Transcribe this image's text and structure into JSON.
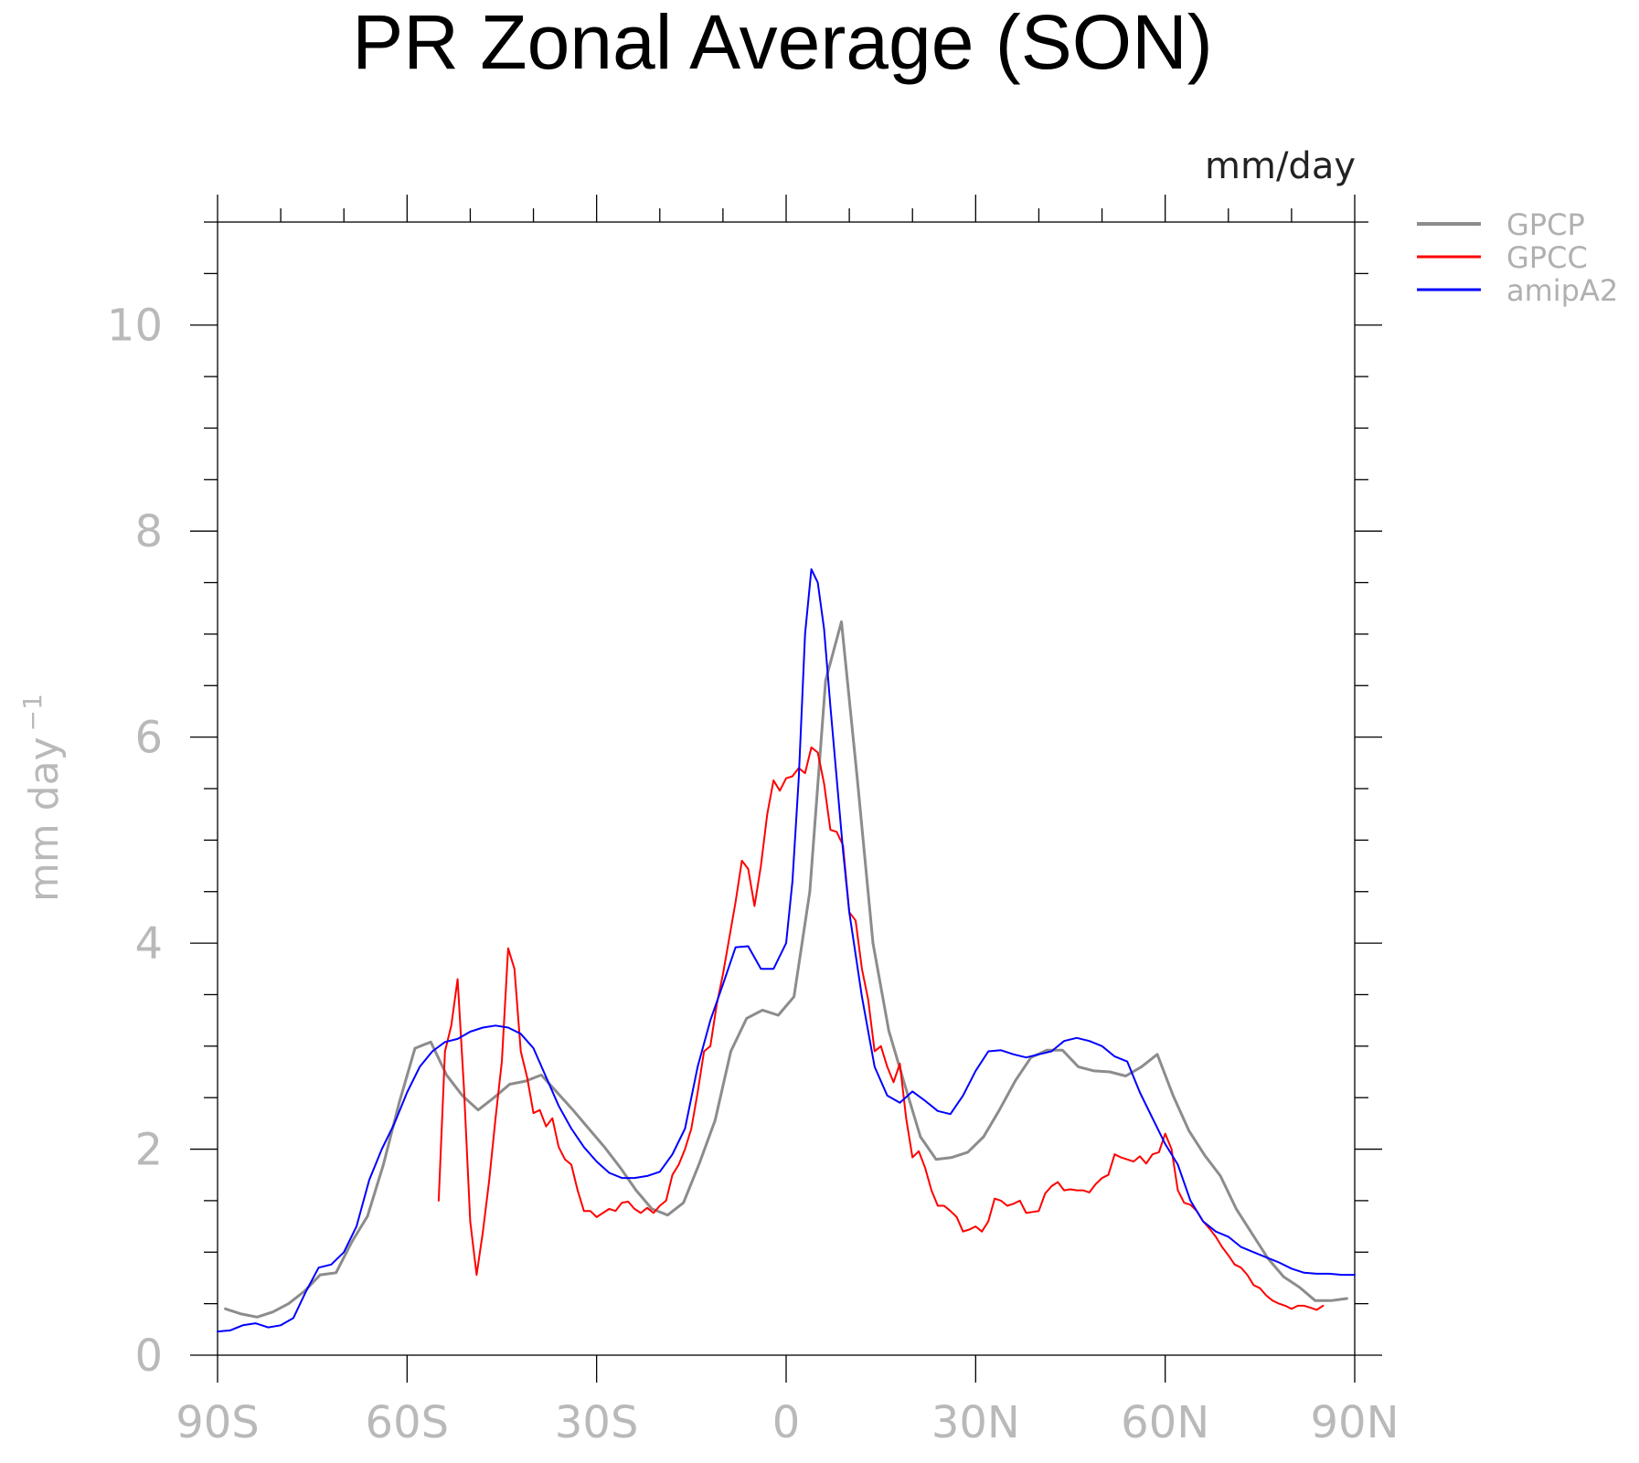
{
  "chart_data": {
    "type": "line",
    "title": "PR Zonal Average (SON)",
    "units_label": "mm/day",
    "ylabel": "mm day",
    "ylabel_superscript": "−1",
    "xlabel": "",
    "xlim": [
      -90,
      90
    ],
    "ylim": [
      0,
      11
    ],
    "x_ticks": [
      -90,
      -60,
      -30,
      0,
      30,
      60,
      90
    ],
    "x_tick_labels": [
      "90S",
      "60S",
      "30S",
      "0",
      "30N",
      "60N",
      "90N"
    ],
    "y_ticks": [
      0,
      2,
      4,
      6,
      8,
      10
    ],
    "y_tick_labels": [
      "0",
      "2",
      "4",
      "6",
      "8",
      "10"
    ],
    "grid": false,
    "legend_position": "top-right",
    "series": [
      {
        "name": "GPCP",
        "color": "#8c8c8c",
        "width": 3,
        "x": [
          -88.75,
          -86.25,
          -83.75,
          -81.25,
          -78.75,
          -76.25,
          -73.75,
          -71.25,
          -68.75,
          -66.25,
          -63.75,
          -61.25,
          -58.75,
          -56.25,
          -53.75,
          -51.25,
          -48.75,
          -46.25,
          -43.75,
          -41.25,
          -38.75,
          -36.25,
          -33.75,
          -31.25,
          -28.75,
          -26.25,
          -23.75,
          -21.25,
          -18.75,
          -16.25,
          -13.75,
          -11.25,
          -8.75,
          -6.25,
          -3.75,
          -1.25,
          1.25,
          3.75,
          6.25,
          8.75,
          11.25,
          13.75,
          16.25,
          18.75,
          21.25,
          23.75,
          26.25,
          28.75,
          31.25,
          33.75,
          36.25,
          38.75,
          41.25,
          43.75,
          46.25,
          48.75,
          51.25,
          53.75,
          56.25,
          58.75,
          61.25,
          63.75,
          66.25,
          68.75,
          71.25,
          73.75,
          76.25,
          78.75,
          81.25,
          83.75,
          86.25,
          88.75
        ],
        "y": [
          0.45,
          0.4,
          0.37,
          0.42,
          0.5,
          0.62,
          0.78,
          0.8,
          1.1,
          1.35,
          1.85,
          2.45,
          2.98,
          3.04,
          2.72,
          2.52,
          2.38,
          2.5,
          2.63,
          2.66,
          2.72,
          2.55,
          2.38,
          2.2,
          2.02,
          1.82,
          1.6,
          1.42,
          1.36,
          1.48,
          1.86,
          2.28,
          2.95,
          3.27,
          3.35,
          3.3,
          3.48,
          4.5,
          6.55,
          7.12,
          5.6,
          4.0,
          3.15,
          2.63,
          2.12,
          1.9,
          1.92,
          1.97,
          2.12,
          2.38,
          2.66,
          2.89,
          2.96,
          2.96,
          2.8,
          2.76,
          2.75,
          2.71,
          2.8,
          2.92,
          2.52,
          2.18,
          1.94,
          1.74,
          1.42,
          1.18,
          0.94,
          0.76,
          0.66,
          0.53,
          0.53,
          0.55
        ]
      },
      {
        "name": "GPCC",
        "color": "#ff0000",
        "width": 2,
        "x": [
          -55.0,
          -54.0,
          -53.0,
          -52.0,
          -51.0,
          -50.0,
          -49.0,
          -48.0,
          -47.0,
          -46.0,
          -45.0,
          -44.0,
          -43.0,
          -42.0,
          -41.0,
          -40.0,
          -39.0,
          -38.0,
          -37.0,
          -36.0,
          -35.0,
          -34.0,
          -33.0,
          -32.0,
          -31.0,
          -30.0,
          -29.0,
          -28.0,
          -27.0,
          -26.0,
          -25.0,
          -24.0,
          -23.0,
          -22.0,
          -21.0,
          -20.0,
          -19.0,
          -18.0,
          -17.0,
          -16.0,
          -15.0,
          -14.0,
          -13.0,
          -12.0,
          -11.0,
          -10.0,
          -9.0,
          -8.0,
          -7.0,
          -6.0,
          -5.0,
          -4.0,
          -3.0,
          -2.0,
          -1.0,
          0.0,
          1.0,
          2.0,
          3.0,
          4.0,
          5.0,
          6.0,
          7.0,
          8.0,
          9.0,
          10.0,
          11.0,
          12.0,
          13.0,
          14.0,
          15.0,
          16.0,
          17.0,
          18.0,
          19.0,
          20.0,
          21.0,
          22.0,
          23.0,
          24.0,
          25.0,
          26.0,
          27.0,
          28.0,
          29.0,
          30.0,
          31.0,
          32.0,
          33.0,
          34.0,
          35.0,
          36.0,
          37.0,
          38.0,
          39.0,
          40.0,
          41.0,
          42.0,
          43.0,
          44.0,
          45.0,
          46.0,
          47.0,
          48.0,
          49.0,
          50.0,
          51.0,
          52.0,
          53.0,
          54.0,
          55.0,
          56.0,
          57.0,
          58.0,
          59.0,
          60.0,
          61.0,
          62.0,
          63.0,
          64.0,
          65.0,
          66.0,
          67.0,
          68.0,
          69.0,
          70.0,
          71.0,
          72.0,
          73.0,
          74.0,
          75.0,
          76.0,
          77.0,
          78.0,
          79.0,
          80.0,
          81.0,
          82.0,
          83.0,
          84.0,
          85.0
        ],
        "y": [
          1.5,
          2.95,
          3.2,
          3.65,
          2.6,
          1.3,
          0.78,
          1.2,
          1.7,
          2.3,
          2.85,
          3.95,
          3.75,
          2.95,
          2.7,
          2.35,
          2.38,
          2.22,
          2.3,
          2.02,
          1.9,
          1.85,
          1.6,
          1.4,
          1.4,
          1.34,
          1.38,
          1.42,
          1.4,
          1.48,
          1.49,
          1.42,
          1.38,
          1.43,
          1.38,
          1.45,
          1.5,
          1.75,
          1.85,
          2.0,
          2.2,
          2.55,
          2.95,
          3.0,
          3.4,
          3.7,
          4.05,
          4.4,
          4.8,
          4.72,
          4.36,
          4.75,
          5.25,
          5.58,
          5.48,
          5.6,
          5.62,
          5.7,
          5.65,
          5.9,
          5.85,
          5.55,
          5.1,
          5.08,
          4.95,
          4.3,
          4.22,
          3.75,
          3.45,
          2.95,
          3.0,
          2.8,
          2.65,
          2.83,
          2.3,
          1.92,
          1.98,
          1.82,
          1.6,
          1.45,
          1.45,
          1.4,
          1.34,
          1.2,
          1.22,
          1.25,
          1.2,
          1.3,
          1.52,
          1.5,
          1.45,
          1.47,
          1.5,
          1.38,
          1.39,
          1.4,
          1.57,
          1.64,
          1.68,
          1.6,
          1.61,
          1.6,
          1.6,
          1.58,
          1.66,
          1.72,
          1.75,
          1.95,
          1.92,
          1.9,
          1.88,
          1.93,
          1.86,
          1.95,
          1.97,
          2.15,
          2.0,
          1.6,
          1.48,
          1.46,
          1.4,
          1.3,
          1.23,
          1.15,
          1.05,
          0.97,
          0.88,
          0.85,
          0.78,
          0.68,
          0.65,
          0.58,
          0.53,
          0.5,
          0.48,
          0.45,
          0.48,
          0.48,
          0.46,
          0.44,
          0.48
        ]
      },
      {
        "name": "amipA2",
        "color": "#0000ff",
        "width": 2,
        "x": [
          -90.0,
          -88.0,
          -86.0,
          -84.0,
          -82.0,
          -80.0,
          -78.0,
          -76.0,
          -74.0,
          -72.0,
          -70.0,
          -68.0,
          -66.0,
          -64.0,
          -62.0,
          -60.0,
          -58.0,
          -56.0,
          -54.0,
          -52.0,
          -50.0,
          -48.0,
          -46.0,
          -44.0,
          -42.0,
          -40.0,
          -38.0,
          -36.0,
          -34.0,
          -32.0,
          -30.0,
          -28.0,
          -26.0,
          -24.0,
          -22.0,
          -20.0,
          -18.0,
          -16.0,
          -14.0,
          -12.0,
          -10.0,
          -8.0,
          -6.0,
          -4.0,
          -2.0,
          0.0,
          1.0,
          2.0,
          3.0,
          4.0,
          5.0,
          6.0,
          7.0,
          8.0,
          9.0,
          10.0,
          12.0,
          14.0,
          16.0,
          18.0,
          20.0,
          22.0,
          24.0,
          26.0,
          28.0,
          30.0,
          32.0,
          34.0,
          36.0,
          38.0,
          40.0,
          42.0,
          44.0,
          46.0,
          48.0,
          50.0,
          52.0,
          54.0,
          56.0,
          58.0,
          60.0,
          62.0,
          64.0,
          66.0,
          68.0,
          70.0,
          72.0,
          74.0,
          76.0,
          78.0,
          80.0,
          82.0,
          84.0,
          86.0,
          88.0,
          90.0
        ],
        "y": [
          0.23,
          0.24,
          0.29,
          0.31,
          0.27,
          0.29,
          0.36,
          0.62,
          0.85,
          0.88,
          1.0,
          1.25,
          1.7,
          2.0,
          2.25,
          2.55,
          2.8,
          2.95,
          3.04,
          3.07,
          3.14,
          3.18,
          3.2,
          3.18,
          3.12,
          2.98,
          2.7,
          2.42,
          2.2,
          2.02,
          1.88,
          1.77,
          1.72,
          1.72,
          1.74,
          1.78,
          1.95,
          2.2,
          2.8,
          3.25,
          3.6,
          3.96,
          3.97,
          3.75,
          3.75,
          4.0,
          4.6,
          5.6,
          7.0,
          7.63,
          7.5,
          7.05,
          6.3,
          5.6,
          4.9,
          4.3,
          3.48,
          2.8,
          2.52,
          2.45,
          2.56,
          2.47,
          2.37,
          2.34,
          2.52,
          2.76,
          2.95,
          2.96,
          2.92,
          2.89,
          2.92,
          2.95,
          3.05,
          3.08,
          3.05,
          3.0,
          2.9,
          2.85,
          2.55,
          2.3,
          2.05,
          1.85,
          1.5,
          1.3,
          1.2,
          1.15,
          1.05,
          1.0,
          0.95,
          0.9,
          0.84,
          0.8,
          0.79,
          0.79,
          0.78,
          0.78
        ]
      }
    ]
  }
}
